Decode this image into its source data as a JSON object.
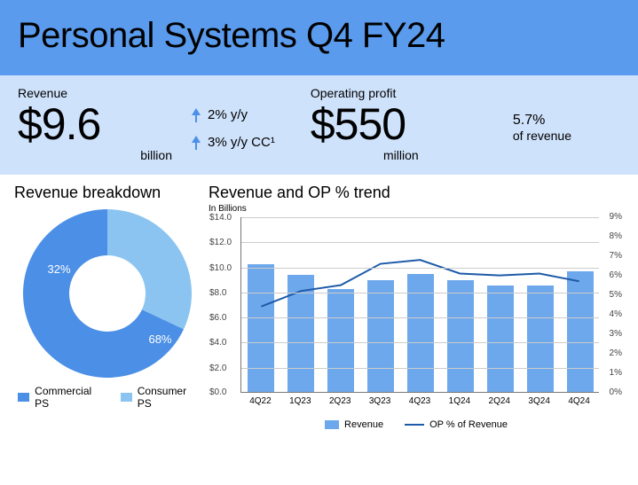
{
  "header": {
    "title": "Personal Systems Q4 FY24"
  },
  "metrics": {
    "revenue": {
      "label": "Revenue",
      "value": "$9.6",
      "unit": "billion"
    },
    "yoy1": "2% y/y",
    "yoy2": "3% y/y CC¹",
    "op": {
      "label": "Operating profit",
      "value": "$550",
      "unit": "million"
    },
    "op_pct": "5.7%",
    "op_pct_sub": "of revenue"
  },
  "donut": {
    "title": "Revenue breakdown",
    "commercial": {
      "label": "Commercial PS",
      "pct": 68,
      "pct_label": "68%",
      "color": "#4b8fe6"
    },
    "consumer": {
      "label": "Consumer PS",
      "pct": 32,
      "pct_label": "32%",
      "color": "#8bc4f0"
    }
  },
  "trend": {
    "title": "Revenue and OP % trend",
    "unit": "In Billions",
    "categories": [
      "4Q22",
      "1Q23",
      "2Q23",
      "3Q23",
      "4Q23",
      "1Q24",
      "2Q24",
      "3Q24",
      "4Q24"
    ],
    "bar_color": "#6ea8ec",
    "line_color": "#1d5aa8",
    "left_axis": {
      "min": 0,
      "max": 14,
      "step": 2,
      "fmt_prefix": "$",
      "fmt_suffix": ".0"
    },
    "right_axis": {
      "min": 0,
      "max": 9,
      "step": 1,
      "fmt_suffix": "%"
    },
    "revenue": [
      10.2,
      9.3,
      8.2,
      8.9,
      9.4,
      8.9,
      8.5,
      8.5,
      9.6
    ],
    "op_pct": [
      4.4,
      5.2,
      5.5,
      6.6,
      6.8,
      6.1,
      6.0,
      6.1,
      5.7
    ],
    "legend_bar": "Revenue",
    "legend_line": "OP % of Revenue"
  }
}
